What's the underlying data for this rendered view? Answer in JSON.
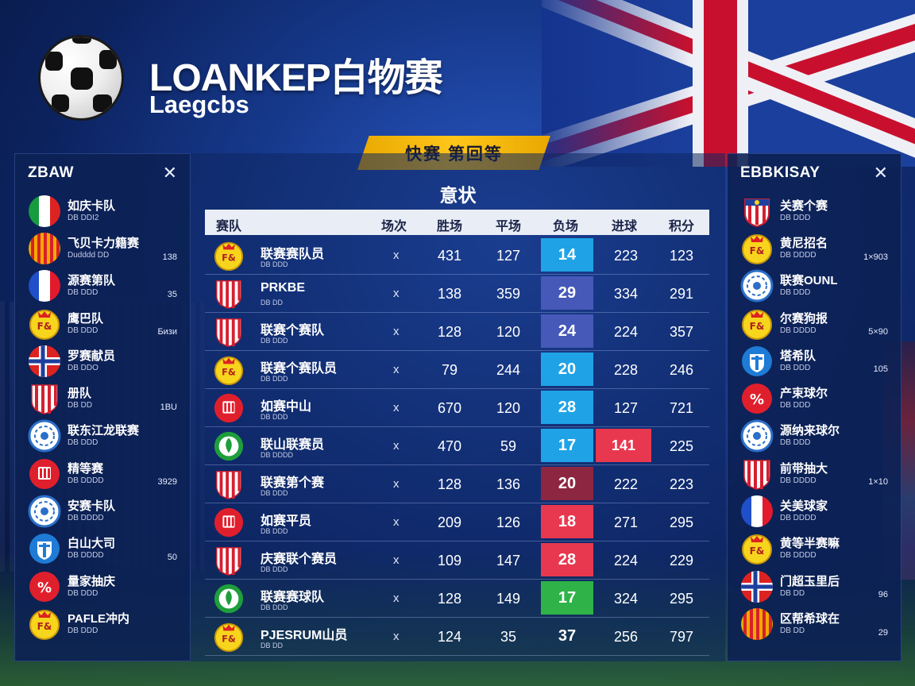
{
  "header": {
    "title": "LOANKEР白物赛",
    "subtitle": "Laegcbs",
    "banner": "快赛  第回等"
  },
  "left_panel": {
    "title": "ZBAW",
    "items": [
      {
        "name": "如庆卡队",
        "sub": "DB DDI2",
        "value": "",
        "emblem": "italy-flag-icon"
      },
      {
        "name": "飞贝卡力籍赛",
        "sub": "Dudddd DD",
        "value": "138",
        "emblem": "spain-stripes-icon"
      },
      {
        "name": "源赛第队",
        "sub": "DB DDD",
        "value": "35",
        "emblem": "france-flag-icon"
      },
      {
        "name": "鹰巴队",
        "sub": "DB DDD",
        "value": "Бизи",
        "emblem": "yellow-crest-icon"
      },
      {
        "name": "罗赛献员",
        "sub": "DB DDO",
        "value": "",
        "emblem": "norway-flag-icon"
      },
      {
        "name": "册队",
        "sub": "DB DD",
        "value": "1BU",
        "emblem": "striped-shield-icon"
      },
      {
        "name": "联东江龙联赛",
        "sub": "DB DDD",
        "value": "",
        "emblem": "blue-ring-crest-icon"
      },
      {
        "name": "精等赛",
        "sub": "DB DDDD",
        "value": "3929",
        "emblem": "red-shield-icon"
      },
      {
        "name": "安赛卡队",
        "sub": "DB DDDD",
        "value": "",
        "emblem": "blue-ring-crest-icon"
      },
      {
        "name": "白山大司",
        "sub": "DB DDDD",
        "value": "50",
        "emblem": "blue-shield-icon"
      },
      {
        "name": "量家抽庆",
        "sub": "DB DDD",
        "value": "",
        "emblem": "percent-crest-icon"
      },
      {
        "name": "PAFLE冲内",
        "sub": "DB DDD",
        "value": "",
        "emblem": "yellow-crest-icon"
      }
    ]
  },
  "right_panel": {
    "title": "EBBKISAY",
    "items": [
      {
        "name": "关赛个赛",
        "sub": "DB DDD",
        "value": "",
        "emblem": "red-white-crest-icon"
      },
      {
        "name": "黄尼招名",
        "sub": "DB DDDD",
        "value": "1×903",
        "emblem": "yellow-crest-icon"
      },
      {
        "name": "联赛OUNL",
        "sub": "DB DDD",
        "value": "",
        "emblem": "blue-ring-crest-icon"
      },
      {
        "name": "尔赛狗报",
        "sub": "DB DDDD",
        "value": "5×90",
        "emblem": "yellow-crest-icon"
      },
      {
        "name": "塔希队",
        "sub": "DB DDD",
        "value": "105",
        "emblem": "blue-shield-icon"
      },
      {
        "name": "产束球尔",
        "sub": "DB DDD",
        "value": "",
        "emblem": "percent-crest-icon"
      },
      {
        "name": "源纳来球尔",
        "sub": "DB DDD",
        "value": "",
        "emblem": "blue-ring-crest-icon"
      },
      {
        "name": "前带抽大",
        "sub": "DB DDDD",
        "value": "1×10",
        "emblem": "striped-shield-icon"
      },
      {
        "name": "关美球家",
        "sub": "DB DDDD",
        "value": "",
        "emblem": "france-flag-icon"
      },
      {
        "name": "黄等半赛嘛",
        "sub": "DB DDDD",
        "value": "",
        "emblem": "yellow-crest-icon"
      },
      {
        "name": "门超玉里后",
        "sub": "DB DD",
        "value": "96",
        "emblem": "norway-flag-icon"
      },
      {
        "name": "区帮希球在",
        "sub": "DB DD",
        "value": "29",
        "emblem": "spain-stripes-icon"
      }
    ]
  },
  "main": {
    "title": "意状",
    "columns": [
      "赛队",
      "场次",
      "胜场",
      "平场",
      "负场",
      "进球",
      "积分"
    ],
    "rows": [
      {
        "name": "联赛赛队员",
        "sub": "DB DDD",
        "emblem": "yellow-crest-icon",
        "mark": "x",
        "v1": "431",
        "v2": "127",
        "hl": "14",
        "hl_color": "cyan",
        "v4": "223",
        "v4_hl": false,
        "v5": "123"
      },
      {
        "name": "PRKBE",
        "sub": "DB DD",
        "emblem": "striped-shield-icon",
        "mark": "x",
        "v1": "138",
        "v2": "359",
        "hl": "29",
        "hl_color": "indigo",
        "v4": "334",
        "v4_hl": false,
        "v5": "291"
      },
      {
        "name": "联赛个赛队",
        "sub": "DB DDD",
        "emblem": "striped-shield-icon",
        "mark": "x",
        "v1": "128",
        "v2": "120",
        "hl": "24",
        "hl_color": "indigo",
        "v4": "224",
        "v4_hl": false,
        "v5": "357"
      },
      {
        "name": "联赛个赛队员",
        "sub": "DB DDD",
        "emblem": "yellow-crest-icon",
        "mark": "x",
        "v1": "79",
        "v2": "244",
        "hl": "20",
        "hl_color": "cyan",
        "v4": "228",
        "v4_hl": false,
        "v5": "246"
      },
      {
        "name": "如赛中山",
        "sub": "DB DDD",
        "emblem": "red-shield-icon",
        "mark": "x",
        "v1": "670",
        "v2": "120",
        "hl": "28",
        "hl_color": "cyan",
        "v4": "127",
        "v4_hl": false,
        "v5": "721"
      },
      {
        "name": "联山联赛员",
        "sub": "DB DDDD",
        "emblem": "green-crest-icon",
        "mark": "x",
        "v1": "470",
        "v2": "59",
        "hl": "17",
        "hl_color": "cyan",
        "v4": "141",
        "v4_hl": true,
        "v5": "225"
      },
      {
        "name": "联赛第个赛",
        "sub": "DB DDD",
        "emblem": "striped-shield-icon",
        "mark": "x",
        "v1": "128",
        "v2": "136",
        "hl": "20",
        "hl_color": "maroon",
        "v4": "222",
        "v4_hl": false,
        "v5": "223"
      },
      {
        "name": "如赛平员",
        "sub": "DB DDD",
        "emblem": "red-shield-icon",
        "mark": "x",
        "v1": "209",
        "v2": "126",
        "hl": "18",
        "hl_color": "red",
        "v4": "271",
        "v4_hl": false,
        "v5": "295"
      },
      {
        "name": "庆赛联个赛员",
        "sub": "DB DDD",
        "emblem": "striped-shield-icon",
        "mark": "x",
        "v1": "109",
        "v2": "147",
        "hl": "28",
        "hl_color": "red",
        "v4": "224",
        "v4_hl": false,
        "v5": "229"
      },
      {
        "name": "联赛赛球队",
        "sub": "DB DDD",
        "emblem": "green-crest-icon",
        "mark": "x",
        "v1": "128",
        "v2": "149",
        "hl": "17",
        "hl_color": "green",
        "v4": "324",
        "v4_hl": false,
        "v5": "295"
      },
      {
        "name": "PJESRUM山员",
        "sub": "DB DD",
        "emblem": "yellow-crest-icon",
        "mark": "x",
        "v1": "124",
        "v2": "35",
        "hl": "37",
        "hl_color": "none",
        "v4": "256",
        "v4_hl": false,
        "v5": "797"
      }
    ]
  },
  "colors": {
    "cyan": "#1fa3e6",
    "indigo": "#4659b8",
    "maroon": "#8d2640",
    "red": "#e8384f",
    "green": "#2fb348",
    "banner": "#ffc61a"
  }
}
